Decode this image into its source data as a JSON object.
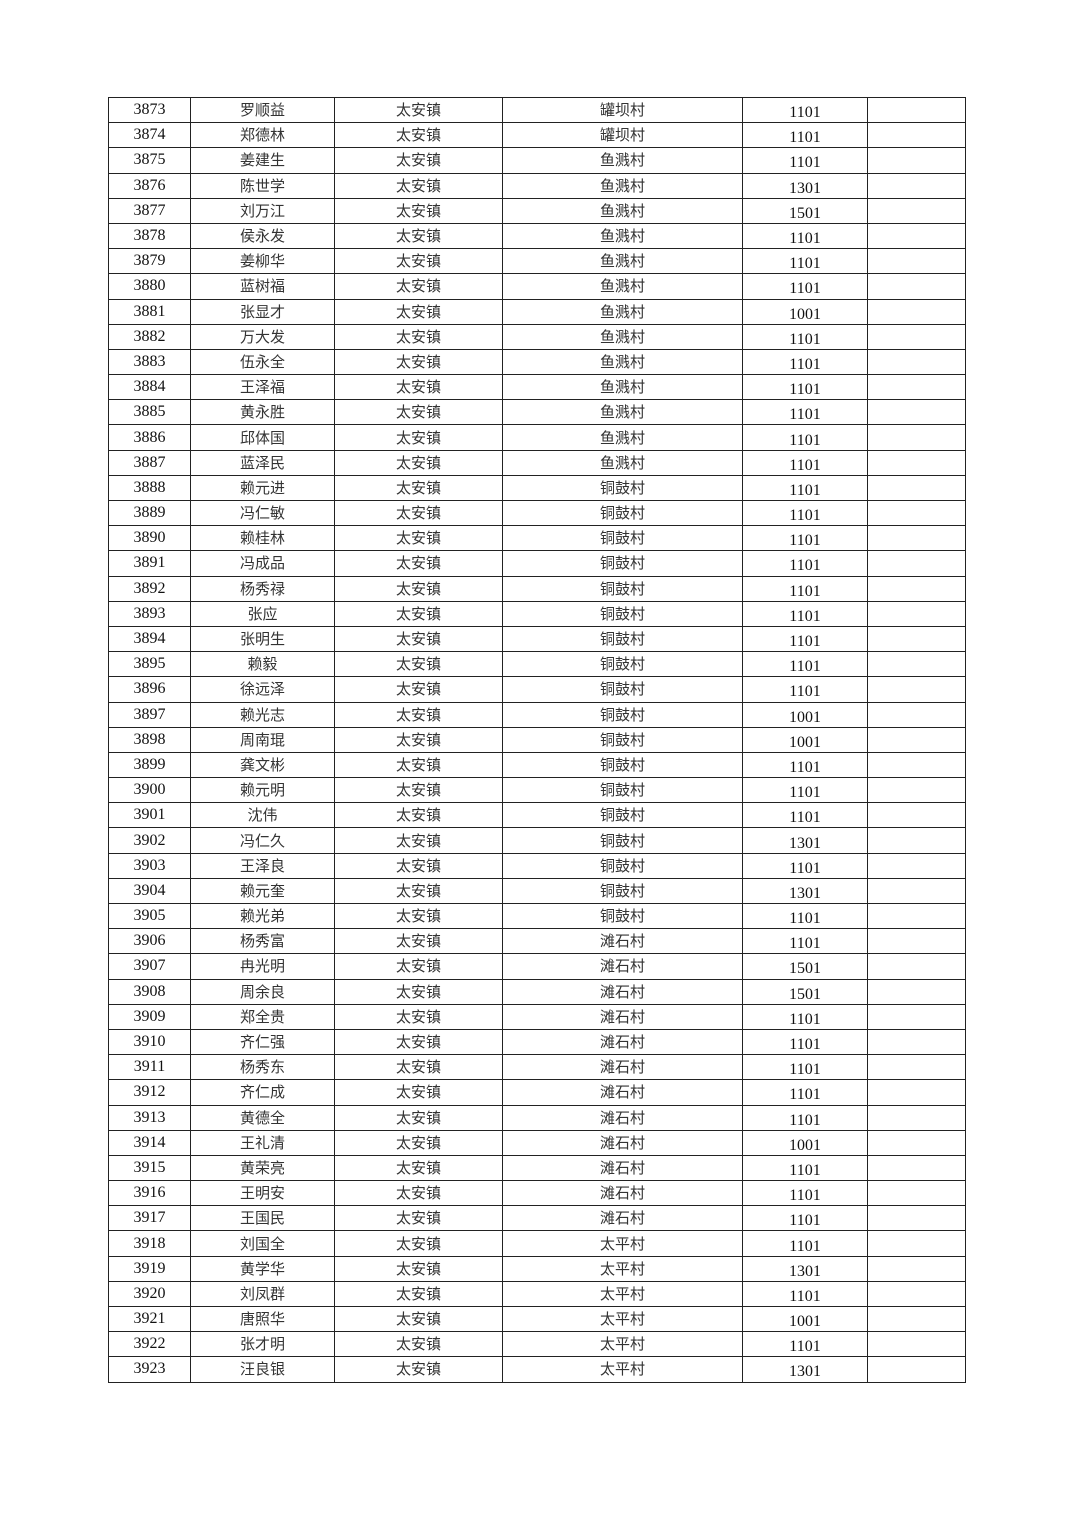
{
  "table": {
    "rows": [
      [
        "3873",
        "罗顺益",
        "太安镇",
        "罐坝村",
        "1101",
        ""
      ],
      [
        "3874",
        "郑德林",
        "太安镇",
        "罐坝村",
        "1101",
        ""
      ],
      [
        "3875",
        "姜建生",
        "太安镇",
        "鱼溅村",
        "1101",
        ""
      ],
      [
        "3876",
        "陈世学",
        "太安镇",
        "鱼溅村",
        "1301",
        ""
      ],
      [
        "3877",
        "刘万江",
        "太安镇",
        "鱼溅村",
        "1501",
        ""
      ],
      [
        "3878",
        "侯永发",
        "太安镇",
        "鱼溅村",
        "1101",
        ""
      ],
      [
        "3879",
        "姜柳华",
        "太安镇",
        "鱼溅村",
        "1101",
        ""
      ],
      [
        "3880",
        "蓝树福",
        "太安镇",
        "鱼溅村",
        "1101",
        ""
      ],
      [
        "3881",
        "张显才",
        "太安镇",
        "鱼溅村",
        "1001",
        ""
      ],
      [
        "3882",
        "万大发",
        "太安镇",
        "鱼溅村",
        "1101",
        ""
      ],
      [
        "3883",
        "伍永全",
        "太安镇",
        "鱼溅村",
        "1101",
        ""
      ],
      [
        "3884",
        "王泽福",
        "太安镇",
        "鱼溅村",
        "1101",
        ""
      ],
      [
        "3885",
        "黄永胜",
        "太安镇",
        "鱼溅村",
        "1101",
        ""
      ],
      [
        "3886",
        "邱体国",
        "太安镇",
        "鱼溅村",
        "1101",
        ""
      ],
      [
        "3887",
        "蓝泽民",
        "太安镇",
        "鱼溅村",
        "1101",
        ""
      ],
      [
        "3888",
        "赖元进",
        "太安镇",
        "铜鼓村",
        "1101",
        ""
      ],
      [
        "3889",
        "冯仁敏",
        "太安镇",
        "铜鼓村",
        "1101",
        ""
      ],
      [
        "3890",
        "赖桂林",
        "太安镇",
        "铜鼓村",
        "1101",
        ""
      ],
      [
        "3891",
        "冯成品",
        "太安镇",
        "铜鼓村",
        "1101",
        ""
      ],
      [
        "3892",
        "杨秀禄",
        "太安镇",
        "铜鼓村",
        "1101",
        ""
      ],
      [
        "3893",
        "张应",
        "太安镇",
        "铜鼓村",
        "1101",
        ""
      ],
      [
        "3894",
        "张明生",
        "太安镇",
        "铜鼓村",
        "1101",
        ""
      ],
      [
        "3895",
        "赖毅",
        "太安镇",
        "铜鼓村",
        "1101",
        ""
      ],
      [
        "3896",
        "徐远泽",
        "太安镇",
        "铜鼓村",
        "1101",
        ""
      ],
      [
        "3897",
        "赖光志",
        "太安镇",
        "铜鼓村",
        "1001",
        ""
      ],
      [
        "3898",
        "周南琨",
        "太安镇",
        "铜鼓村",
        "1001",
        ""
      ],
      [
        "3899",
        "龚文彬",
        "太安镇",
        "铜鼓村",
        "1101",
        ""
      ],
      [
        "3900",
        "赖元明",
        "太安镇",
        "铜鼓村",
        "1101",
        ""
      ],
      [
        "3901",
        "沈伟",
        "太安镇",
        "铜鼓村",
        "1101",
        ""
      ],
      [
        "3902",
        "冯仁久",
        "太安镇",
        "铜鼓村",
        "1301",
        ""
      ],
      [
        "3903",
        "王泽良",
        "太安镇",
        "铜鼓村",
        "1101",
        ""
      ],
      [
        "3904",
        "赖元奎",
        "太安镇",
        "铜鼓村",
        "1301",
        ""
      ],
      [
        "3905",
        "赖光弟",
        "太安镇",
        "铜鼓村",
        "1101",
        ""
      ],
      [
        "3906",
        "杨秀富",
        "太安镇",
        "滩石村",
        "1101",
        ""
      ],
      [
        "3907",
        "冉光明",
        "太安镇",
        "滩石村",
        "1501",
        ""
      ],
      [
        "3908",
        "周余良",
        "太安镇",
        "滩石村",
        "1501",
        ""
      ],
      [
        "3909",
        "郑全贵",
        "太安镇",
        "滩石村",
        "1101",
        ""
      ],
      [
        "3910",
        "齐仁强",
        "太安镇",
        "滩石村",
        "1101",
        ""
      ],
      [
        "3911",
        "杨秀东",
        "太安镇",
        "滩石村",
        "1101",
        ""
      ],
      [
        "3912",
        "齐仁成",
        "太安镇",
        "滩石村",
        "1101",
        ""
      ],
      [
        "3913",
        "黄德全",
        "太安镇",
        "滩石村",
        "1101",
        ""
      ],
      [
        "3914",
        "王礼清",
        "太安镇",
        "滩石村",
        "1001",
        ""
      ],
      [
        "3915",
        "黄荣亮",
        "太安镇",
        "滩石村",
        "1101",
        ""
      ],
      [
        "3916",
        "王明安",
        "太安镇",
        "滩石村",
        "1101",
        ""
      ],
      [
        "3917",
        "王国民",
        "太安镇",
        "滩石村",
        "1101",
        ""
      ],
      [
        "3918",
        "刘国全",
        "太安镇",
        "太平村",
        "1101",
        ""
      ],
      [
        "3919",
        "黄学华",
        "太安镇",
        "太平村",
        "1301",
        ""
      ],
      [
        "3920",
        "刘凤群",
        "太安镇",
        "太平村",
        "1101",
        ""
      ],
      [
        "3921",
        "唐照华",
        "太安镇",
        "太平村",
        "1001",
        ""
      ],
      [
        "3922",
        "张才明",
        "太安镇",
        "太平村",
        "1101",
        ""
      ],
      [
        "3923",
        "汪良银",
        "太安镇",
        "太平村",
        "1301",
        ""
      ]
    ]
  }
}
